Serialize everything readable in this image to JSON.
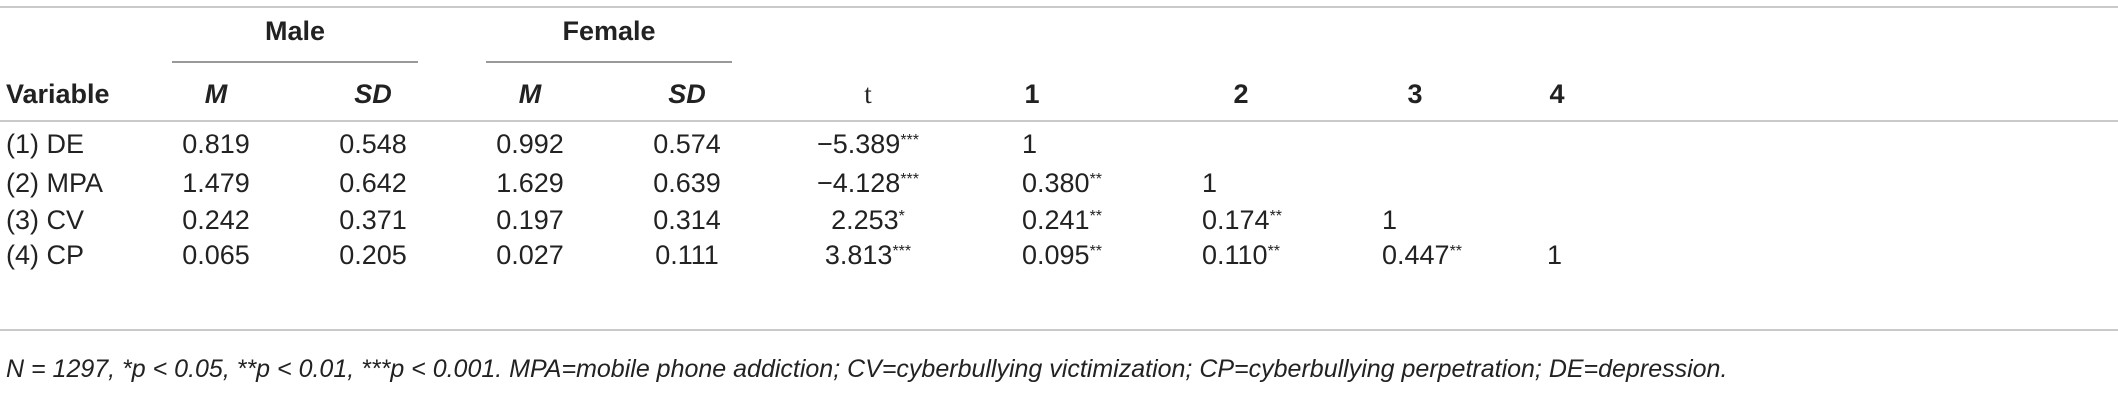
{
  "groups": {
    "male": "Male",
    "female": "Female"
  },
  "header": {
    "variable": "Variable",
    "male_m": "M",
    "male_sd": "SD",
    "female_m": "M",
    "female_sd": "SD",
    "t": "t",
    "c1": "1",
    "c2": "2",
    "c3": "3",
    "c4": "4"
  },
  "rows": [
    {
      "variable": "(1) DE",
      "male_m": "0.819",
      "male_sd": "0.548",
      "female_m": "0.992",
      "female_sd": "0.574",
      "t": "−5.389",
      "t_sig": "***",
      "c1": "1",
      "c1_sig": "",
      "c2": "",
      "c2_sig": "",
      "c3": "",
      "c3_sig": "",
      "c4": ""
    },
    {
      "variable": "(2) MPA",
      "male_m": "1.479",
      "male_sd": "0.642",
      "female_m": "1.629",
      "female_sd": "0.639",
      "t": "−4.128",
      "t_sig": "***",
      "c1": "0.380",
      "c1_sig": "**",
      "c2": "1",
      "c2_sig": "",
      "c3": "",
      "c3_sig": "",
      "c4": ""
    },
    {
      "variable": "(3) CV",
      "male_m": "0.242",
      "male_sd": "0.371",
      "female_m": "0.197",
      "female_sd": "0.314",
      "t": "2.253",
      "t_sig": "*",
      "c1": "0.241",
      "c1_sig": "**",
      "c2": "0.174",
      "c2_sig": "**",
      "c3": "1",
      "c3_sig": "",
      "c4": ""
    },
    {
      "variable": "(4) CP",
      "male_m": "0.065",
      "male_sd": "0.205",
      "female_m": "0.027",
      "female_sd": "0.111",
      "t": "3.813",
      "t_sig": "***",
      "c1": "0.095",
      "c1_sig": "**",
      "c2": "0.110",
      "c2_sig": "**",
      "c3": "0.447",
      "c3_sig": "**",
      "c4": "1"
    }
  ],
  "footnote": "N = 1297, *p < 0.05, **p < 0.01, ***p < 0.001. MPA=mobile phone addiction; CV=cyberbullying victimization; CP=cyberbullying perpetration; DE=depression."
}
